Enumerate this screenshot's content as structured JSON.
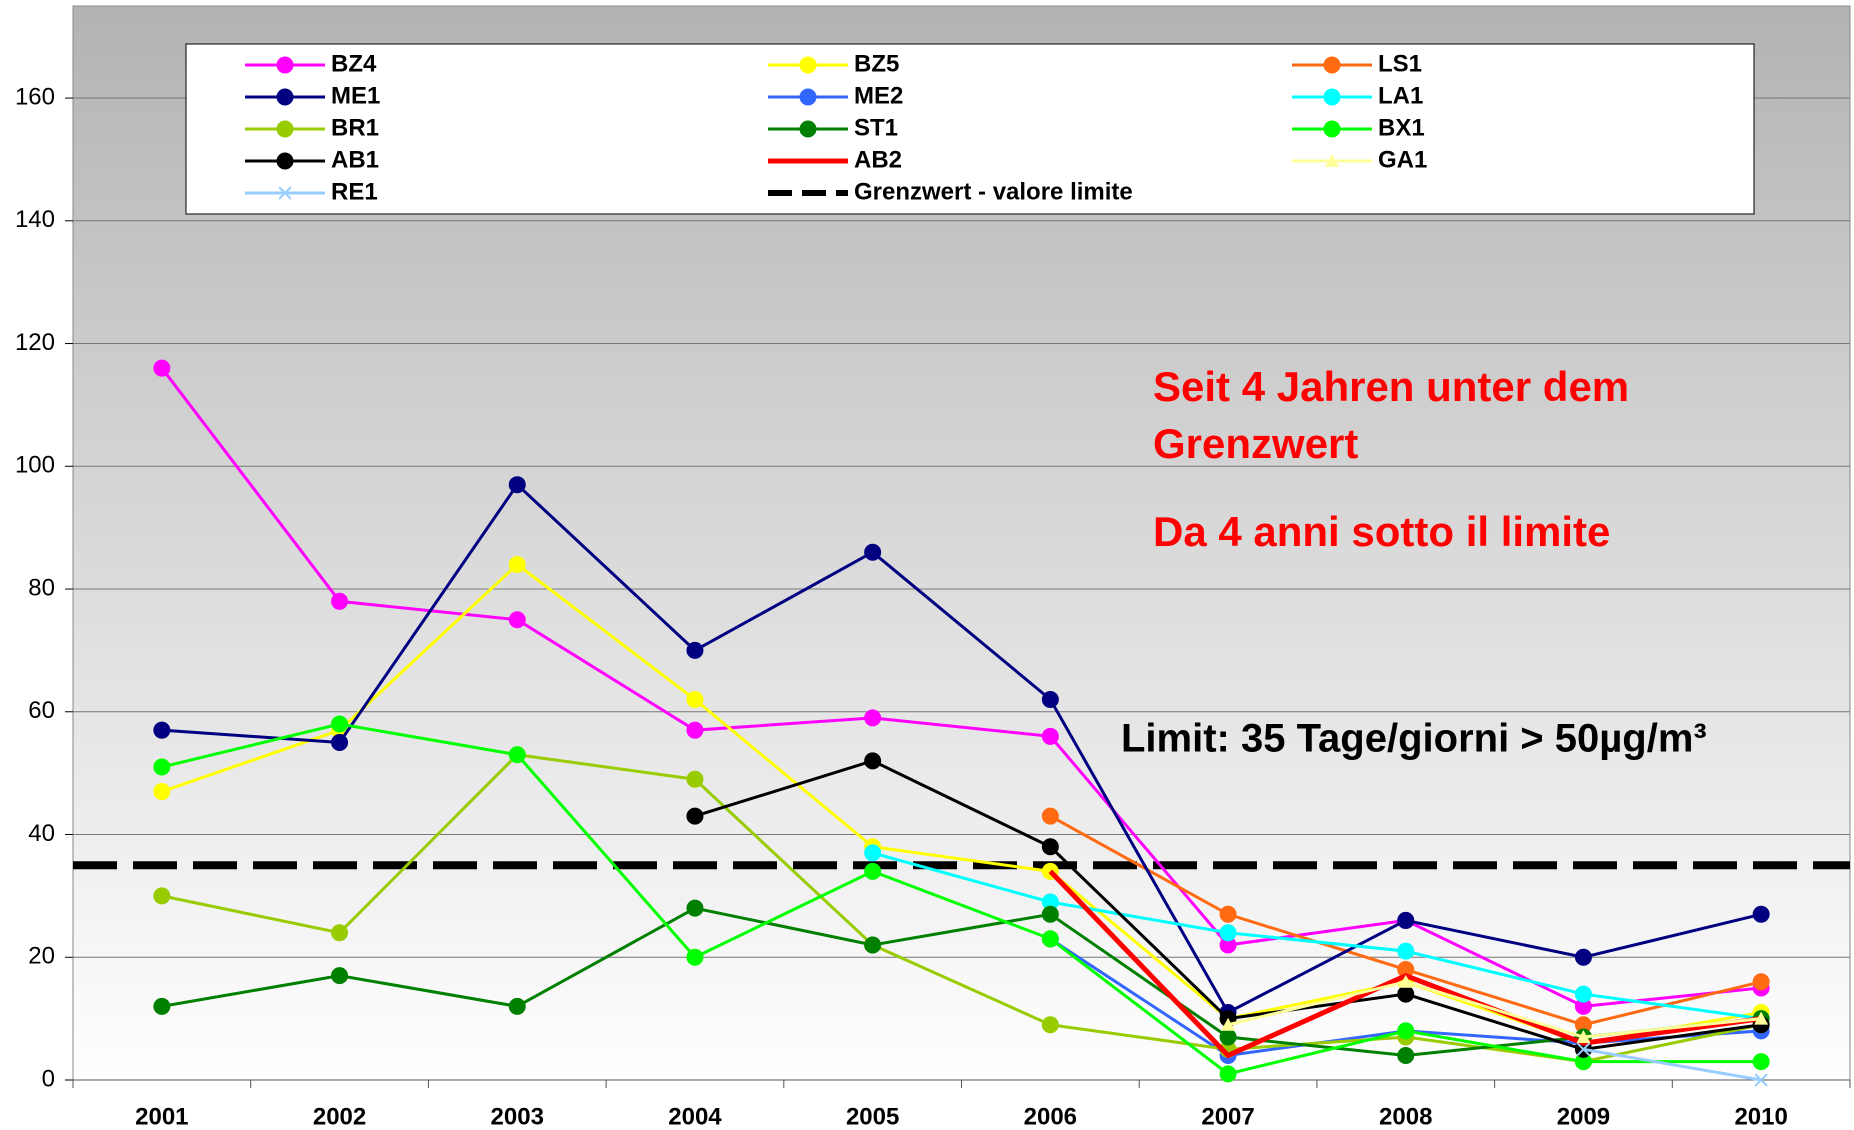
{
  "chart_data": {
    "type": "line",
    "categories": [
      "2001",
      "2002",
      "2003",
      "2004",
      "2005",
      "2006",
      "2007",
      "2008",
      "2009",
      "2010"
    ],
    "ylim": [
      0,
      175
    ],
    "yticks": [
      0,
      20,
      40,
      60,
      80,
      100,
      120,
      140,
      160
    ],
    "grid": true,
    "series": [
      {
        "name": "BZ4",
        "color": "#ff00ff",
        "marker": "circle",
        "values": [
          116,
          78,
          75,
          57,
          59,
          56,
          22,
          26,
          12,
          15
        ]
      },
      {
        "name": "BZ5",
        "color": "#ffff00",
        "marker": "circle",
        "values": [
          47,
          57,
          84,
          62,
          38,
          34,
          10,
          16,
          6,
          11
        ]
      },
      {
        "name": "LS1",
        "color": "#ff6a13",
        "marker": "circle",
        "values": [
          null,
          null,
          null,
          null,
          null,
          43,
          27,
          18,
          9,
          16
        ]
      },
      {
        "name": "ME1",
        "color": "#000080",
        "marker": "circle",
        "values": [
          57,
          55,
          97,
          70,
          86,
          62,
          11,
          26,
          20,
          27
        ]
      },
      {
        "name": "ME2",
        "color": "#3366ff",
        "marker": "circle",
        "values": [
          null,
          null,
          null,
          null,
          null,
          23,
          4,
          8,
          6,
          8
        ]
      },
      {
        "name": "LA1",
        "color": "#00ffff",
        "marker": "circle",
        "values": [
          null,
          null,
          null,
          null,
          37,
          29,
          24,
          21,
          14,
          10
        ]
      },
      {
        "name": "BR1",
        "color": "#99cc00",
        "marker": "circle",
        "values": [
          30,
          24,
          53,
          49,
          22,
          9,
          5,
          7,
          3,
          9
        ]
      },
      {
        "name": "ST1",
        "color": "#008000",
        "marker": "circle",
        "values": [
          12,
          17,
          12,
          28,
          22,
          27,
          7,
          4,
          7,
          10
        ]
      },
      {
        "name": "BX1",
        "color": "#00ff00",
        "marker": "circle",
        "values": [
          51,
          58,
          53,
          20,
          34,
          23,
          1,
          8,
          3,
          3
        ]
      },
      {
        "name": "AB1",
        "color": "#000000",
        "marker": "circle",
        "values": [
          null,
          null,
          null,
          43,
          52,
          38,
          10,
          14,
          5,
          9
        ]
      },
      {
        "name": "AB2",
        "color": "#ff0000",
        "marker": "none",
        "values": [
          null,
          null,
          null,
          null,
          null,
          34,
          4,
          17,
          6,
          10
        ]
      },
      {
        "name": "GA1",
        "color": "#ffff99",
        "marker": "triangle",
        "values": [
          null,
          null,
          null,
          null,
          null,
          null,
          9,
          16,
          7,
          10
        ]
      },
      {
        "name": "RE1",
        "color": "#99ccff",
        "marker": "x",
        "values": [
          null,
          null,
          null,
          null,
          null,
          null,
          null,
          null,
          5,
          0
        ]
      }
    ],
    "reference_line": {
      "name": "Grenzwert - valore limite",
      "value": 35,
      "color": "#000000"
    },
    "annotations": [
      "Seit 4 Jahren unter dem",
      "Grenzwert",
      "Da 4 anni sotto il limite"
    ],
    "limit_note": "Limit: 35 Tage/giorni > 50µg/m³"
  }
}
